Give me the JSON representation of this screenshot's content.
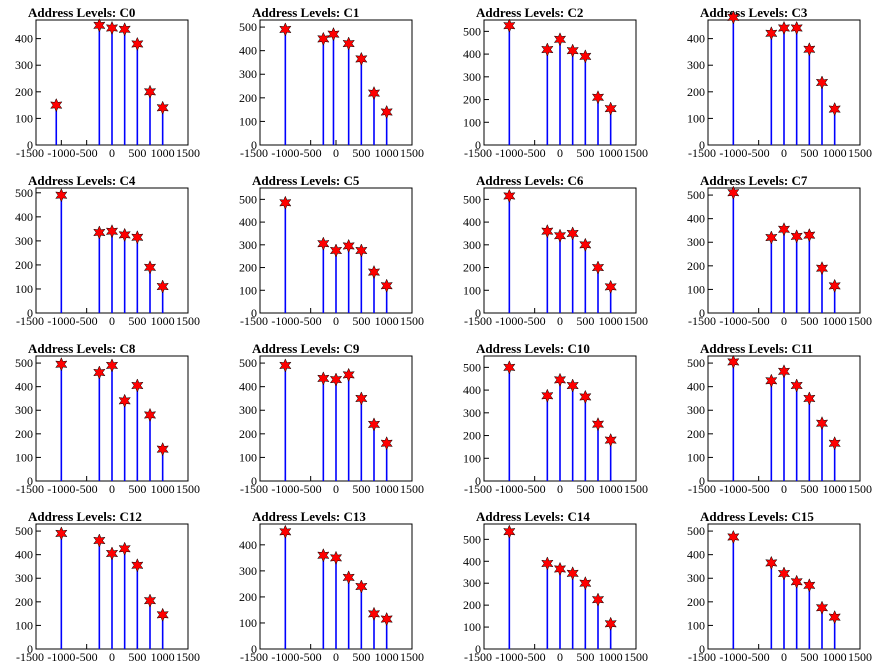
{
  "chart_data": [
    {
      "type": "bar",
      "title": "Address Levels: C0",
      "xlim": [
        -1500,
        1500
      ],
      "ylim": [
        0,
        470
      ],
      "yticks": [
        0,
        100,
        200,
        300,
        400
      ],
      "x": [
        -1100,
        -250,
        0,
        250,
        500,
        750,
        1000
      ],
      "values": [
        150,
        450,
        440,
        435,
        380,
        200,
        140
      ]
    },
    {
      "type": "bar",
      "title": "Address Levels: C1",
      "xlim": [
        -1500,
        1500
      ],
      "ylim": [
        0,
        530
      ],
      "yticks": [
        0,
        100,
        200,
        300,
        400,
        500
      ],
      "x": [
        -1000,
        -250,
        -50,
        250,
        500,
        750,
        1000
      ],
      "values": [
        490,
        450,
        470,
        430,
        365,
        220,
        140
      ]
    },
    {
      "type": "bar",
      "title": "Address Levels: C2",
      "xlim": [
        -1500,
        1500
      ],
      "ylim": [
        0,
        550
      ],
      "yticks": [
        0,
        100,
        200,
        300,
        400,
        500
      ],
      "x": [
        -1000,
        -250,
        0,
        250,
        500,
        750,
        1000
      ],
      "values": [
        525,
        420,
        465,
        415,
        390,
        210,
        160
      ]
    },
    {
      "type": "bar",
      "title": "Address Levels: C3",
      "xlim": [
        -1500,
        1500
      ],
      "ylim": [
        0,
        470
      ],
      "yticks": [
        0,
        100,
        200,
        300,
        400
      ],
      "x": [
        -1000,
        -250,
        0,
        250,
        500,
        750,
        1000
      ],
      "values": [
        480,
        420,
        440,
        440,
        360,
        235,
        135
      ]
    },
    {
      "type": "bar",
      "title": "Address Levels: C4",
      "xlim": [
        -1500,
        1500
      ],
      "ylim": [
        0,
        520
      ],
      "yticks": [
        0,
        100,
        200,
        300,
        400,
        500
      ],
      "x": [
        -1000,
        -250,
        0,
        250,
        500,
        750,
        1000
      ],
      "values": [
        490,
        335,
        340,
        325,
        315,
        190,
        110
      ]
    },
    {
      "type": "bar",
      "title": "Address Levels: C5",
      "xlim": [
        -1500,
        1500
      ],
      "ylim": [
        0,
        550
      ],
      "yticks": [
        0,
        100,
        200,
        300,
        400,
        500
      ],
      "x": [
        -1000,
        -250,
        0,
        250,
        500,
        750,
        1000
      ],
      "values": [
        485,
        305,
        275,
        295,
        275,
        180,
        120
      ]
    },
    {
      "type": "bar",
      "title": "Address Levels: C6",
      "xlim": [
        -1500,
        1500
      ],
      "ylim": [
        0,
        550
      ],
      "yticks": [
        0,
        100,
        200,
        300,
        400,
        500
      ],
      "x": [
        -1000,
        -250,
        0,
        250,
        500,
        750,
        1000
      ],
      "values": [
        515,
        360,
        340,
        350,
        300,
        200,
        115
      ]
    },
    {
      "type": "bar",
      "title": "Address Levels: C7",
      "xlim": [
        -1500,
        1500
      ],
      "ylim": [
        0,
        530
      ],
      "yticks": [
        0,
        100,
        200,
        300,
        400,
        500
      ],
      "x": [
        -1000,
        -250,
        0,
        250,
        500,
        750,
        1000
      ],
      "values": [
        510,
        320,
        355,
        325,
        330,
        190,
        115
      ]
    },
    {
      "type": "bar",
      "title": "Address Levels: C8",
      "xlim": [
        -1500,
        1500
      ],
      "ylim": [
        0,
        530
      ],
      "yticks": [
        0,
        100,
        200,
        300,
        400,
        500
      ],
      "x": [
        -1000,
        -250,
        0,
        250,
        500,
        750,
        1000
      ],
      "values": [
        495,
        460,
        490,
        340,
        405,
        280,
        135
      ]
    },
    {
      "type": "bar",
      "title": "Address Levels: C9",
      "xlim": [
        -1500,
        1500
      ],
      "ylim": [
        0,
        530
      ],
      "yticks": [
        0,
        100,
        200,
        300,
        400,
        500
      ],
      "x": [
        -1000,
        -250,
        0,
        250,
        500,
        750,
        1000
      ],
      "values": [
        490,
        435,
        430,
        450,
        350,
        240,
        160
      ]
    },
    {
      "type": "bar",
      "title": "Address Levels: C10",
      "xlim": [
        -1500,
        1500
      ],
      "ylim": [
        0,
        550
      ],
      "yticks": [
        0,
        100,
        200,
        300,
        400,
        500
      ],
      "x": [
        -1000,
        -250,
        0,
        250,
        500,
        750,
        1000
      ],
      "values": [
        500,
        375,
        445,
        420,
        370,
        250,
        180
      ]
    },
    {
      "type": "bar",
      "title": "Address Levels: C11",
      "xlim": [
        -1500,
        1500
      ],
      "ylim": [
        0,
        530
      ],
      "yticks": [
        0,
        100,
        200,
        300,
        400,
        500
      ],
      "x": [
        -1000,
        -250,
        0,
        250,
        500,
        750,
        1000
      ],
      "values": [
        505,
        425,
        465,
        405,
        350,
        245,
        160
      ]
    },
    {
      "type": "bar",
      "title": "Address Levels: C12",
      "xlim": [
        -1500,
        1500
      ],
      "ylim": [
        0,
        530
      ],
      "yticks": [
        0,
        100,
        200,
        300,
        400,
        500
      ],
      "x": [
        -1000,
        -250,
        0,
        250,
        500,
        750,
        1000
      ],
      "values": [
        490,
        460,
        405,
        425,
        355,
        205,
        145
      ]
    },
    {
      "type": "bar",
      "title": "Address Levels: C13",
      "xlim": [
        -1500,
        1500
      ],
      "ylim": [
        0,
        480
      ],
      "yticks": [
        0,
        100,
        200,
        300,
        400
      ],
      "x": [
        -1000,
        -250,
        0,
        250,
        500,
        750,
        1000
      ],
      "values": [
        450,
        360,
        350,
        275,
        240,
        135,
        115
      ]
    },
    {
      "type": "bar",
      "title": "Address Levels: C14",
      "xlim": [
        -1500,
        1500
      ],
      "ylim": [
        0,
        570
      ],
      "yticks": [
        0,
        100,
        200,
        300,
        400,
        500
      ],
      "x": [
        -1000,
        -250,
        0,
        250,
        500,
        750,
        1000
      ],
      "values": [
        535,
        390,
        365,
        345,
        300,
        225,
        115
      ]
    },
    {
      "type": "bar",
      "title": "Address Levels: C15",
      "xlim": [
        -1500,
        1500
      ],
      "ylim": [
        0,
        530
      ],
      "yticks": [
        0,
        100,
        200,
        300,
        400,
        500
      ],
      "x": [
        -1000,
        -250,
        0,
        250,
        500,
        750,
        1000
      ],
      "values": [
        475,
        365,
        320,
        285,
        270,
        175,
        135
      ]
    }
  ],
  "colors": {
    "bars": "#0000ff",
    "markers": "#ff0000",
    "axes": "#000000",
    "background": "#ffffff"
  },
  "xticks": [
    -1500,
    -1000,
    -500,
    0,
    500,
    1000,
    1500
  ],
  "xtick_labels": [
    "-1500",
    "-1000",
    "-500",
    "0",
    "500",
    "1000",
    "1500"
  ]
}
